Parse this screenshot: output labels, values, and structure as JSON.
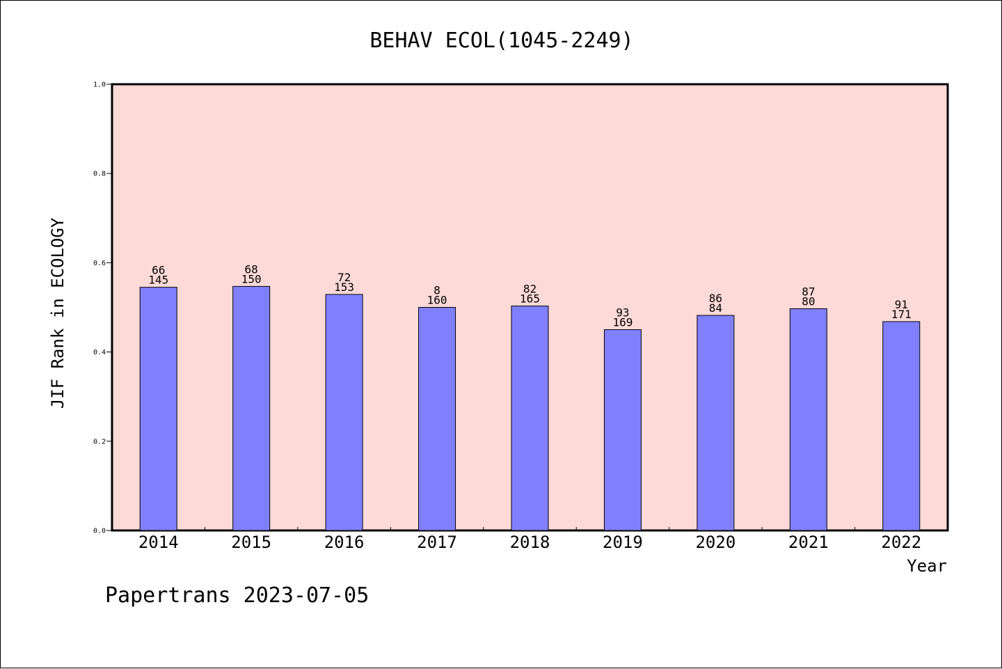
{
  "chart_data": {
    "type": "bar",
    "title": "BEHAV ECOL(1045-2249)",
    "xlabel": "Year",
    "ylabel": "JIF Rank in ECOLOGY",
    "categories": [
      "2014",
      "2015",
      "2016",
      "2017",
      "2018",
      "2019",
      "2020",
      "2021",
      "2022"
    ],
    "values": [
      0.545,
      0.547,
      0.529,
      0.5,
      0.503,
      0.45,
      0.482,
      0.497,
      0.468
    ],
    "label_top": [
      "66",
      "68",
      "72",
      "8",
      "82",
      "93",
      "86",
      "87",
      "91"
    ],
    "label_bottom": [
      "145",
      "150",
      "153",
      "160",
      "165",
      "169",
      "84",
      "80",
      "171"
    ],
    "ylim": [
      0.0,
      1.0
    ],
    "yticks": [
      "0.0",
      "0.2",
      "0.4",
      "0.6",
      "0.8",
      "1.0"
    ],
    "grid": false,
    "colors": {
      "plot_background": "#fddad7",
      "bar_fill": "#8080ff",
      "bar_stroke": "#000000"
    }
  },
  "footer": "Papertrans 2023-07-05"
}
